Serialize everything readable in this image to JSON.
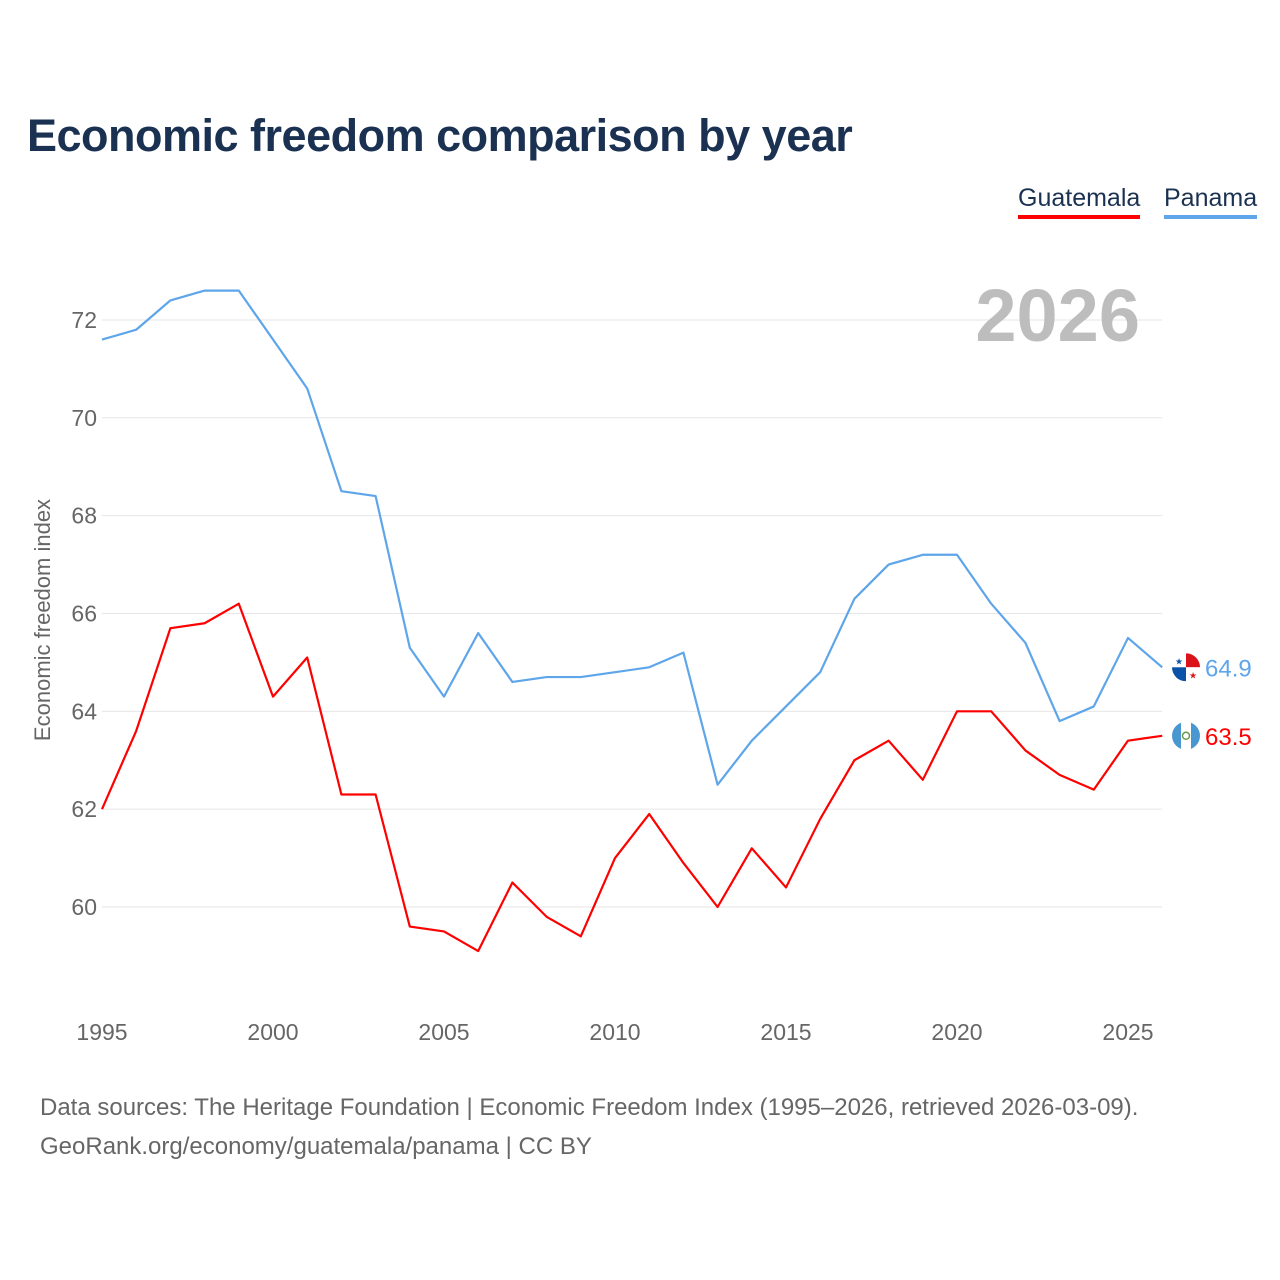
{
  "chart_data": {
    "type": "line",
    "title": "Economic freedom comparison by year",
    "ylabel": "Economic freedom index",
    "xlabel": "",
    "year_watermark": "2026",
    "xlim": [
      1995,
      2026
    ],
    "ylim": [
      58,
      73.5
    ],
    "x_ticks": [
      1995,
      2000,
      2005,
      2010,
      2015,
      2020,
      2025
    ],
    "y_ticks": [
      60,
      62,
      64,
      66,
      68,
      70,
      72
    ],
    "grid": true,
    "legend_position": "top-right",
    "x": [
      1995,
      1996,
      1997,
      1998,
      1999,
      2000,
      2001,
      2002,
      2003,
      2004,
      2005,
      2006,
      2007,
      2008,
      2009,
      2010,
      2011,
      2012,
      2013,
      2014,
      2015,
      2016,
      2017,
      2018,
      2019,
      2020,
      2021,
      2022,
      2023,
      2024,
      2025,
      2026
    ],
    "series": [
      {
        "name": "Guatemala",
        "color": "#ff0000",
        "end_label": "63.5",
        "values": [
          62.0,
          63.6,
          65.7,
          65.8,
          66.2,
          64.3,
          65.1,
          62.3,
          62.3,
          59.6,
          59.5,
          59.1,
          60.5,
          59.8,
          59.4,
          61.0,
          61.9,
          60.9,
          60.0,
          61.2,
          60.4,
          61.8,
          63.0,
          63.4,
          62.6,
          64.0,
          64.0,
          63.2,
          62.7,
          62.4,
          63.4,
          63.5
        ]
      },
      {
        "name": "Panama",
        "color": "#5ea5ea",
        "end_label": "64.9",
        "values": [
          71.6,
          71.8,
          72.4,
          72.6,
          72.6,
          71.6,
          70.6,
          68.5,
          68.4,
          65.3,
          64.3,
          65.6,
          64.6,
          64.7,
          64.7,
          64.8,
          64.9,
          65.2,
          62.5,
          63.4,
          64.1,
          64.8,
          66.3,
          67.0,
          67.2,
          67.2,
          66.2,
          65.4,
          63.8,
          64.1,
          65.5,
          64.9
        ]
      }
    ]
  },
  "footer": {
    "line1": "Data sources: The Heritage Foundation | Economic Freedom Index (1995–2026, retrieved 2026-03-09).",
    "line2": "GeoRank.org/economy/guatemala/panama | CC BY"
  }
}
